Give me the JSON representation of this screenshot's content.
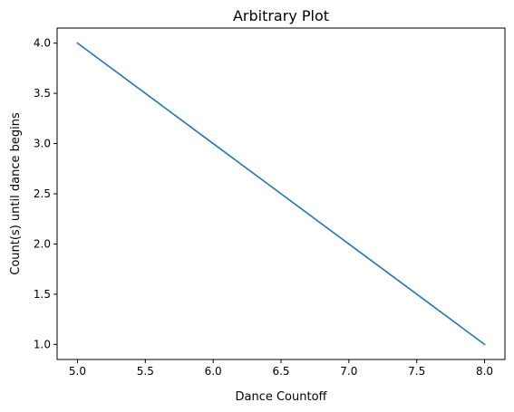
{
  "chart_data": {
    "type": "line",
    "title": "Arbitrary Plot",
    "xlabel": "Dance Countoff",
    "ylabel": "Count(s) until dance begins",
    "x": [
      5,
      6,
      7,
      8
    ],
    "series": [
      {
        "values": [
          4,
          3,
          2,
          1
        ]
      }
    ],
    "xlim": [
      4.85,
      8.15
    ],
    "ylim": [
      0.85,
      4.15
    ],
    "xticks": [
      5.0,
      5.5,
      6.0,
      6.5,
      7.0,
      7.5,
      8.0
    ],
    "xtick_labels": [
      "5.0",
      "5.5",
      "6.0",
      "6.5",
      "7.0",
      "7.5",
      "8.0"
    ],
    "yticks": [
      1.0,
      1.5,
      2.0,
      2.5,
      3.0,
      3.5,
      4.0
    ],
    "ytick_labels": [
      "1.0",
      "1.5",
      "2.0",
      "2.5",
      "3.0",
      "3.5",
      "4.0"
    ],
    "grid": false,
    "line_color": "#1f77b4"
  }
}
